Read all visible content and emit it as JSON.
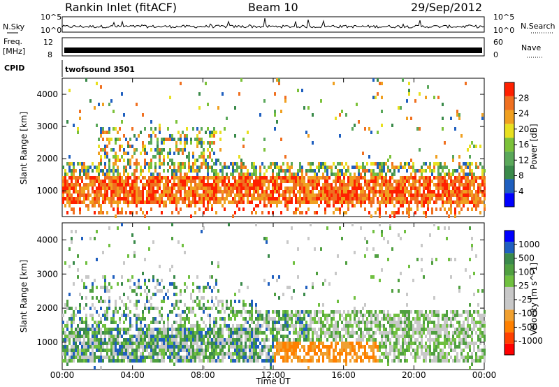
{
  "header": {
    "station": "Rankin Inlet (fitACF)",
    "beam": "Beam 10",
    "date": "29/Sep/2012",
    "nsky_label": "N.Sky",
    "nsearch_label": "N.Search",
    "freq_label": "Freq.",
    "freq_unit": "[MHz]",
    "nave_label": "Nave",
    "cpid_label": "CPID",
    "cpid_value": "twofsound 3501",
    "noise_ticks": [
      "10^5",
      "10^0"
    ],
    "freq_ticks": [
      "12",
      "8"
    ],
    "nave_ticks": [
      "60",
      "0"
    ]
  },
  "colors": {
    "power_scale": [
      "#0000ff",
      "#1f5fbf",
      "#3a8a4a",
      "#5aa85a",
      "#7cc23a",
      "#e8e020",
      "#f0a020",
      "#f07020",
      "#ff2000"
    ],
    "velocity_scale": [
      "#ff0000",
      "#ff4000",
      "#ff8000",
      "#f0a030",
      "#c8c8c8",
      "#c8c8c8",
      "#70c040",
      "#50a040",
      "#3a8a4a",
      "#1f5fbf",
      "#0000ff"
    ]
  },
  "chart_data": [
    {
      "type": "heatmap",
      "title": "",
      "ylabel": "Slant Range [km]",
      "xlabel": "",
      "ylim": [
        200,
        4500
      ],
      "yticks": [
        "1000",
        "2000",
        "3000",
        "4000"
      ],
      "colorbar_label": "Power [dB]",
      "colorbar_ticks": [
        "4",
        "8",
        "12",
        "16",
        "20",
        "24",
        "28"
      ],
      "bands": [
        {
          "x": [
            0,
            24
          ],
          "y": [
            600,
            1500
          ],
          "level": "high"
        },
        {
          "x": [
            0,
            24
          ],
          "y": [
            1500,
            2000
          ],
          "level": "medium"
        },
        {
          "x": [
            2,
            9
          ],
          "y": [
            2000,
            3000
          ],
          "level": "low"
        }
      ]
    },
    {
      "type": "heatmap",
      "title": "",
      "ylabel": "Slant Range [km]",
      "xlabel": "Time UT",
      "ylim": [
        200,
        4500
      ],
      "yticks": [
        "1000",
        "2000",
        "3000",
        "4000"
      ],
      "xticks": [
        "00:00",
        "04:00",
        "08:00",
        "12:00",
        "16:00",
        "20:00",
        "00:00"
      ],
      "colorbar_label": "Velocity [m s^-1]",
      "colorbar_ticks": [
        "1000",
        "500",
        "100",
        "25",
        "-25",
        "-100",
        "-500",
        "-1000"
      ],
      "bands": [
        {
          "x": [
            0,
            11
          ],
          "y": [
            500,
            1500
          ],
          "level": "mixed-green"
        },
        {
          "x": [
            12,
            18
          ],
          "y": [
            500,
            1100
          ],
          "level": "orange"
        },
        {
          "x": [
            14,
            24
          ],
          "y": [
            500,
            2000
          ],
          "level": "grey"
        }
      ]
    }
  ]
}
